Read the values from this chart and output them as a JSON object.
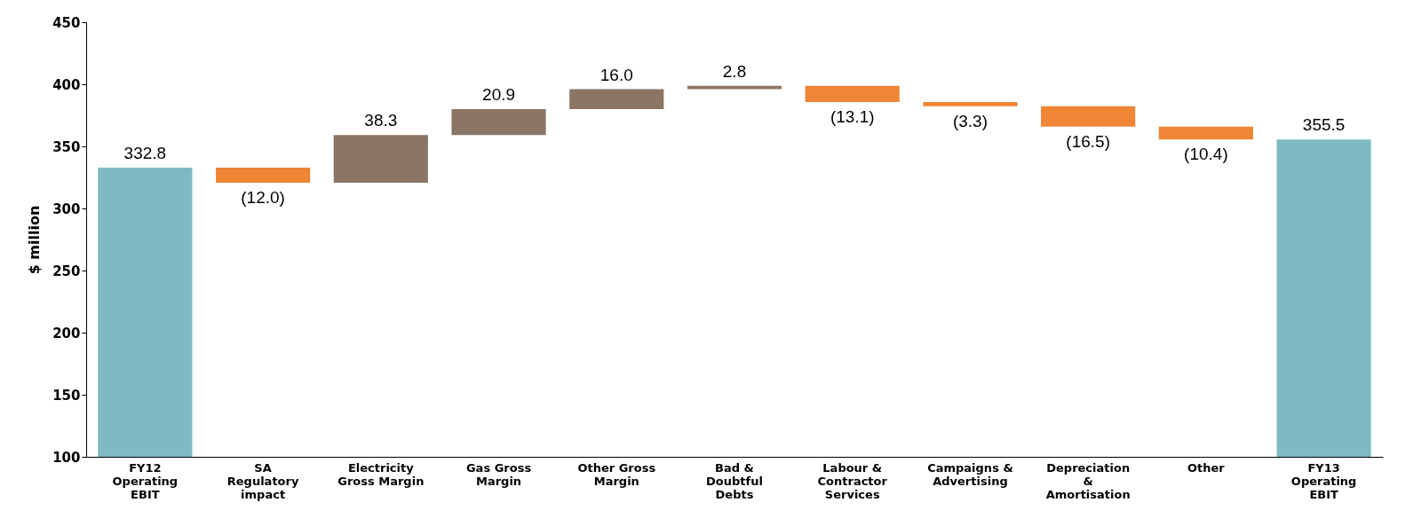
{
  "chart_data": {
    "type": "bar",
    "ylabel": "$ million",
    "categories": [
      "FY12 Operating EBIT",
      "SA Regulatory impact",
      "Electricity Gross Margin",
      "Gas Gross Margin",
      "Other Gross Margin",
      "Bad & Doubtful Debts",
      "Labour & Contractor Services",
      "Campaigns & Advertising",
      "Depreciation & Amortisation",
      "Other",
      "FY13 Operating EBIT"
    ],
    "values": [
      332.8,
      -12.0,
      38.3,
      20.9,
      16.0,
      2.8,
      -13.1,
      -3.3,
      -16.5,
      -10.4,
      355.5
    ],
    "base": [
      0,
      332.8,
      320.8,
      359.1,
      380.0,
      396.0,
      398.8,
      385.7,
      382.4,
      365.9,
      0
    ],
    "colors": [
      "#7fbac3",
      "#ee8636",
      "#8b7565",
      "#8b7565",
      "#8b7565",
      "#8b7565",
      "#ee8636",
      "#ee8636",
      "#ee8636",
      "#ee8636",
      "#7fbac3"
    ],
    "value_labels": [
      "332.8",
      "(12.0)",
      "38.3",
      "20.9",
      "16.0",
      "2.8",
      "(13.1)",
      "(3.3)",
      "(16.5)",
      "(10.4)",
      "355.5"
    ],
    "ylim": [
      100,
      450
    ],
    "yticks": [
      100,
      150,
      200,
      250,
      300,
      350,
      400,
      450
    ],
    "grid": false
  }
}
